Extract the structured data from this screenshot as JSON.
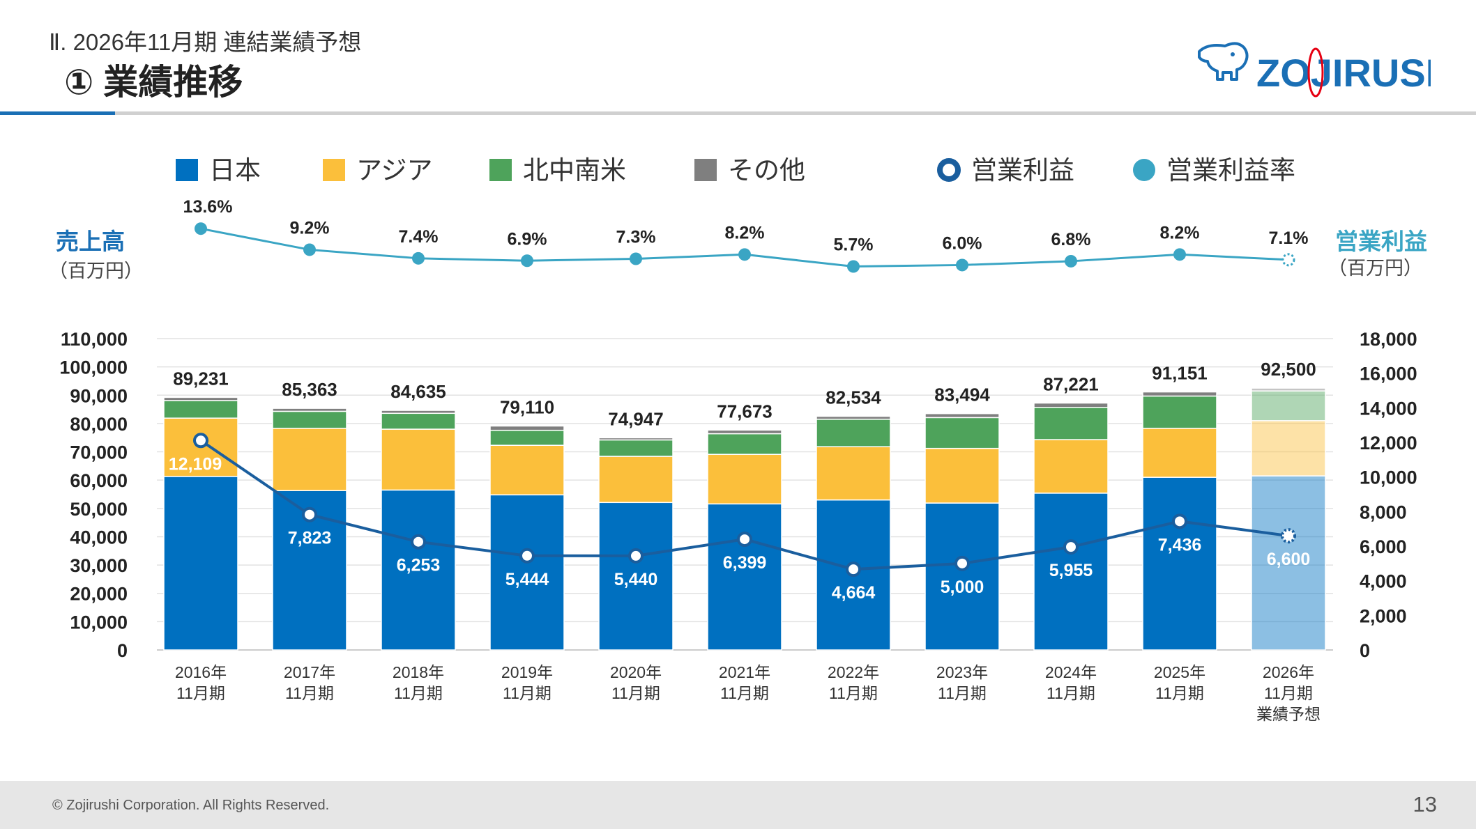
{
  "header": {
    "subtitle": "Ⅱ. 2026年11月期  連結業績予想",
    "title": "① 業績推移"
  },
  "logo": {
    "text": "ZOJIRUSHI",
    "icon": "elephant-icon"
  },
  "footer": {
    "copyright": "© Zojirushi Corporation. All Rights Reserved.",
    "page": "13"
  },
  "chart_data": {
    "type": "bar",
    "stacked": true,
    "categories": [
      [
        "2016年",
        "11月期"
      ],
      [
        "2017年",
        "11月期"
      ],
      [
        "2018年",
        "11月期"
      ],
      [
        "2019年",
        "11月期"
      ],
      [
        "2020年",
        "11月期"
      ],
      [
        "2021年",
        "11月期"
      ],
      [
        "2022年",
        "11月期"
      ],
      [
        "2023年",
        "11月期"
      ],
      [
        "2024年",
        "11月期"
      ],
      [
        "2025年",
        "11月期"
      ],
      [
        "2026年",
        "11月期",
        "業績予想"
      ]
    ],
    "forecast_index": 10,
    "left_axis": {
      "label": "売上高",
      "unit": "（百万円）",
      "ylim": [
        0,
        110000
      ],
      "ticks": [
        "0",
        "10,000",
        "20,000",
        "30,000",
        "40,000",
        "50,000",
        "60,000",
        "70,000",
        "80,000",
        "90,000",
        "100,000",
        "110,000"
      ]
    },
    "right_axis": {
      "label": "営業利益",
      "unit": "（百万円）",
      "ylim": [
        0,
        18000
      ],
      "ticks": [
        "0",
        "2,000",
        "4,000",
        "6,000",
        "8,000",
        "10,000",
        "12,000",
        "14,000",
        "16,000",
        "18,000"
      ]
    },
    "series": [
      {
        "name": "日本",
        "color": "#0070c0",
        "values": [
          61300,
          56300,
          56500,
          54800,
          52100,
          51600,
          53000,
          51900,
          55400,
          61000,
          61500
        ]
      },
      {
        "name": "アジア",
        "color": "#fbbf3b",
        "values": [
          20600,
          22000,
          21500,
          17500,
          16300,
          17500,
          18800,
          19300,
          18900,
          17300,
          19500
        ]
      },
      {
        "name": "北中南米",
        "color": "#4ea35b",
        "values": [
          6200,
          6000,
          5600,
          5300,
          5800,
          7300,
          9700,
          10900,
          11400,
          11400,
          10500
        ]
      },
      {
        "name": "その他",
        "color": "#7f7f7f",
        "values": [
          1131,
          1063,
          1035,
          1510,
          747,
          1273,
          1034,
          1394,
          1521,
          1451,
          1000
        ]
      }
    ],
    "totals": [
      "89,231",
      "85,363",
      "84,635",
      "79,110",
      "74,947",
      "77,673",
      "82,534",
      "83,494",
      "87,221",
      "91,151",
      "92,500"
    ],
    "total_values": [
      89231,
      85363,
      84635,
      79110,
      74947,
      77673,
      82534,
      83494,
      87221,
      91151,
      92500
    ],
    "operating_profit": {
      "name": "営業利益",
      "color": "#1a5e9e",
      "values": [
        12109,
        7823,
        6253,
        5444,
        5440,
        6399,
        4664,
        5000,
        5955,
        7436,
        6600
      ],
      "labels": [
        "12,109",
        "7,823",
        "6,253",
        "5,444",
        "5,440",
        "6,399",
        "4,664",
        "5,000",
        "5,955",
        "7,436",
        "6,600"
      ]
    },
    "operating_margin": {
      "name": "営業利益率",
      "color": "#3aa5c4",
      "values": [
        13.6,
        9.2,
        7.4,
        6.9,
        7.3,
        8.2,
        5.7,
        6.0,
        6.8,
        8.2,
        7.1
      ],
      "labels": [
        "13.6%",
        "9.2%",
        "7.4%",
        "6.9%",
        "7.3%",
        "8.2%",
        "5.7%",
        "6.0%",
        "6.8%",
        "8.2%",
        "7.1%"
      ]
    },
    "grid": true
  }
}
